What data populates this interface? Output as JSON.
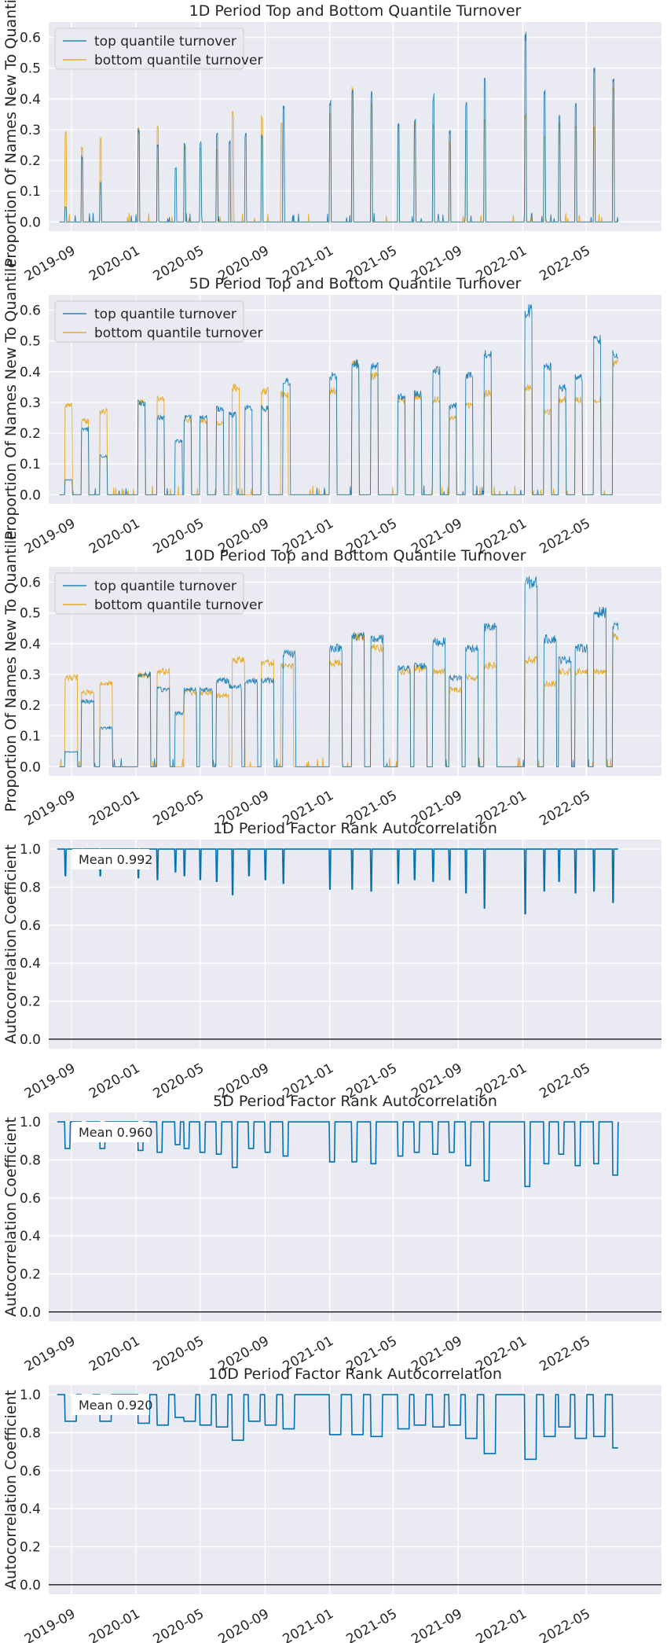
{
  "colors": {
    "top": "#0072b2",
    "bottom": "#e69f00",
    "autocorr": "#0072b2",
    "zero_line": "#000000",
    "background": "#eaeaf2",
    "grid": "#ffffff"
  },
  "chart_data": [
    {
      "type": "line",
      "title": "1D Period Top and Bottom Quantile Turnover",
      "ylabel": "Proportion Of Names New To Quantile",
      "yticks": [
        "0.0",
        "0.1",
        "0.2",
        "0.3",
        "0.4",
        "0.5",
        "0.6"
      ],
      "ylim": [
        -0.03,
        0.65
      ],
      "xticks": [
        "2019-09",
        "2020-01",
        "2020-05",
        "2020-09",
        "2021-01",
        "2021-05",
        "2021-09",
        "2022-01",
        "2022-05"
      ],
      "xlim": [
        "2019-07-20",
        "2022-09-20"
      ],
      "legend": [
        "top quantile turnover",
        "bottom quantile turnover"
      ],
      "legend_position": "upper-left",
      "grid": true,
      "series": [
        {
          "name": "top quantile turnover",
          "peaks": [
            [
              "2019-08-20",
              0.05
            ],
            [
              "2019-09-20",
              0.22
            ],
            [
              "2019-10-25",
              0.13
            ],
            [
              "2020-01-05",
              0.31
            ],
            [
              "2020-02-10",
              0.26
            ],
            [
              "2020-03-15",
              0.18
            ],
            [
              "2020-04-01",
              0.26
            ],
            [
              "2020-05-01",
              0.26
            ],
            [
              "2020-06-01",
              0.29
            ],
            [
              "2020-06-25",
              0.27
            ],
            [
              "2020-07-25",
              0.29
            ],
            [
              "2020-08-25",
              0.29
            ],
            [
              "2020-10-05",
              0.38
            ],
            [
              "2021-01-01",
              0.4
            ],
            [
              "2021-02-12",
              0.44
            ],
            [
              "2021-03-20",
              0.43
            ],
            [
              "2021-05-10",
              0.33
            ],
            [
              "2021-06-10",
              0.34
            ],
            [
              "2021-07-15",
              0.42
            ],
            [
              "2021-08-15",
              0.3
            ],
            [
              "2021-09-15",
              0.4
            ],
            [
              "2021-10-20",
              0.47
            ],
            [
              "2022-01-05",
              0.62
            ],
            [
              "2022-02-10",
              0.43
            ],
            [
              "2022-03-10",
              0.36
            ],
            [
              "2022-04-10",
              0.4
            ],
            [
              "2022-05-15",
              0.52
            ],
            [
              "2022-06-20",
              0.47
            ]
          ]
        },
        {
          "name": "bottom quantile turnover",
          "peaks": [
            [
              "2019-08-20",
              0.3
            ],
            [
              "2019-09-20",
              0.25
            ],
            [
              "2019-10-25",
              0.28
            ],
            [
              "2020-01-05",
              0.31
            ],
            [
              "2020-02-10",
              0.32
            ],
            [
              "2020-04-01",
              0.25
            ],
            [
              "2020-05-01",
              0.25
            ],
            [
              "2020-06-01",
              0.24
            ],
            [
              "2020-07-01",
              0.36
            ],
            [
              "2020-08-25",
              0.35
            ],
            [
              "2020-10-01",
              0.34
            ],
            [
              "2021-01-01",
              0.35
            ],
            [
              "2021-02-12",
              0.44
            ],
            [
              "2021-03-20",
              0.4
            ],
            [
              "2021-05-10",
              0.32
            ],
            [
              "2021-06-10",
              0.33
            ],
            [
              "2021-07-15",
              0.32
            ],
            [
              "2021-08-15",
              0.26
            ],
            [
              "2021-09-15",
              0.3
            ],
            [
              "2021-10-20",
              0.34
            ],
            [
              "2022-01-05",
              0.36
            ],
            [
              "2022-02-10",
              0.28
            ],
            [
              "2022-03-10",
              0.32
            ],
            [
              "2022-04-10",
              0.32
            ],
            [
              "2022-05-15",
              0.32
            ],
            [
              "2022-06-20",
              0.44
            ]
          ]
        }
      ]
    },
    {
      "type": "line",
      "title": "5D Period Top and Bottom Quantile Turnover",
      "ylabel": "Proportion Of Names New To Quantile",
      "yticks": [
        "0.0",
        "0.1",
        "0.2",
        "0.3",
        "0.4",
        "0.5",
        "0.6"
      ],
      "ylim": [
        -0.03,
        0.65
      ],
      "xticks": [
        "2019-09",
        "2020-01",
        "2020-05",
        "2020-09",
        "2021-01",
        "2021-05",
        "2021-09",
        "2022-01",
        "2022-05"
      ],
      "xlim": [
        "2019-07-20",
        "2022-09-20"
      ],
      "legend": [
        "top quantile turnover",
        "bottom quantile turnover"
      ],
      "legend_position": "upper-left",
      "grid": true
    },
    {
      "type": "line",
      "title": "10D Period Top and Bottom Quantile Turnover",
      "ylabel": "Proportion Of Names New To Quantile",
      "yticks": [
        "0.0",
        "0.1",
        "0.2",
        "0.3",
        "0.4",
        "0.5",
        "0.6"
      ],
      "ylim": [
        -0.03,
        0.65
      ],
      "xticks": [
        "2019-09",
        "2020-01",
        "2020-05",
        "2020-09",
        "2021-01",
        "2021-05",
        "2021-09",
        "2022-01",
        "2022-05"
      ],
      "xlim": [
        "2019-07-20",
        "2022-09-20"
      ],
      "legend": [
        "top quantile turnover",
        "bottom quantile turnover"
      ],
      "legend_position": "upper-left",
      "grid": true
    },
    {
      "type": "line",
      "title": "1D Period Factor Rank Autocorrelation",
      "ylabel": "Autocorrelation Coefficient",
      "yticks": [
        "0.0",
        "0.2",
        "0.4",
        "0.6",
        "0.8",
        "1.0"
      ],
      "ylim": [
        -0.05,
        1.05
      ],
      "xticks": [
        "2019-09",
        "2020-01",
        "2020-05",
        "2020-09",
        "2021-01",
        "2021-05",
        "2021-09",
        "2022-01",
        "2022-05"
      ],
      "xlim": [
        "2019-07-20",
        "2022-09-20"
      ],
      "mean_label": "Mean 0.992",
      "grid": true,
      "dips": [
        [
          "2019-08-20",
          0.86
        ],
        [
          "2019-09-20",
          0.9
        ],
        [
          "2019-10-25",
          0.86
        ],
        [
          "2020-01-05",
          0.85
        ],
        [
          "2020-02-10",
          0.84
        ],
        [
          "2020-03-15",
          0.88
        ],
        [
          "2020-04-01",
          0.86
        ],
        [
          "2020-05-01",
          0.84
        ],
        [
          "2020-06-01",
          0.83
        ],
        [
          "2020-07-01",
          0.76
        ],
        [
          "2020-08-01",
          0.86
        ],
        [
          "2020-09-01",
          0.84
        ],
        [
          "2020-10-05",
          0.82
        ],
        [
          "2021-01-01",
          0.79
        ],
        [
          "2021-02-12",
          0.79
        ],
        [
          "2021-03-20",
          0.78
        ],
        [
          "2021-05-10",
          0.82
        ],
        [
          "2021-06-10",
          0.84
        ],
        [
          "2021-07-15",
          0.83
        ],
        [
          "2021-08-15",
          0.84
        ],
        [
          "2021-09-15",
          0.77
        ],
        [
          "2021-10-20",
          0.69
        ],
        [
          "2022-01-05",
          0.66
        ],
        [
          "2022-02-10",
          0.78
        ],
        [
          "2022-03-10",
          0.83
        ],
        [
          "2022-04-10",
          0.77
        ],
        [
          "2022-05-15",
          0.78
        ],
        [
          "2022-06-20",
          0.72
        ]
      ]
    },
    {
      "type": "line",
      "title": "5D Period Factor Rank Autocorrelation",
      "ylabel": "Autocorrelation Coefficient",
      "yticks": [
        "0.0",
        "0.2",
        "0.4",
        "0.6",
        "0.8",
        "1.0"
      ],
      "ylim": [
        -0.05,
        1.05
      ],
      "xticks": [
        "2019-09",
        "2020-01",
        "2020-05",
        "2020-09",
        "2021-01",
        "2021-05",
        "2021-09",
        "2022-01",
        "2022-05"
      ],
      "xlim": [
        "2019-07-20",
        "2022-09-20"
      ],
      "mean_label": "Mean 0.960",
      "grid": true
    },
    {
      "type": "line",
      "title": "10D Period Factor Rank Autocorrelation",
      "ylabel": "Autocorrelation Coefficient",
      "yticks": [
        "0.0",
        "0.2",
        "0.4",
        "0.6",
        "0.8",
        "1.0"
      ],
      "ylim": [
        -0.05,
        1.05
      ],
      "xticks": [
        "2019-09",
        "2020-01",
        "2020-05",
        "2020-09",
        "2021-01",
        "2021-05",
        "2021-09",
        "2022-01",
        "2022-05"
      ],
      "xlim": [
        "2019-07-20",
        "2022-09-20"
      ],
      "mean_label": "Mean 0.920",
      "grid": true
    }
  ]
}
